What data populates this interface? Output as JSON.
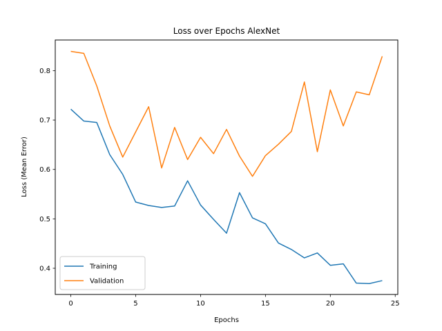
{
  "chart_data": {
    "type": "line",
    "title": "Loss over Epochs AlexNet",
    "xlabel": "Epochs",
    "ylabel": "Loss (Mean Error)",
    "xlim": [
      -1.2,
      25.2
    ],
    "ylim": [
      0.347,
      0.862
    ],
    "xticks": [
      0,
      5,
      10,
      15,
      20,
      25
    ],
    "yticks": [
      0.4,
      0.5,
      0.6,
      0.7,
      0.8
    ],
    "legend": "lower-left",
    "grid": false,
    "x": [
      0,
      1,
      2,
      3,
      4,
      5,
      6,
      7,
      8,
      9,
      10,
      11,
      12,
      13,
      14,
      15,
      16,
      17,
      18,
      19,
      20,
      21,
      22,
      23,
      24
    ],
    "series": [
      {
        "name": "Training",
        "color": "#1f77b4",
        "values": [
          0.722,
          0.698,
          0.695,
          0.63,
          0.59,
          0.534,
          0.527,
          0.523,
          0.526,
          0.577,
          0.528,
          0.499,
          0.471,
          0.553,
          0.502,
          0.49,
          0.451,
          0.438,
          0.421,
          0.431,
          0.406,
          0.409,
          0.37,
          0.369,
          0.375
        ]
      },
      {
        "name": "Validation",
        "color": "#ff7f0e",
        "values": [
          0.839,
          0.835,
          0.769,
          0.688,
          0.625,
          0.676,
          0.727,
          0.603,
          0.685,
          0.62,
          0.665,
          0.632,
          0.681,
          0.627,
          0.586,
          0.628,
          0.651,
          0.677,
          0.777,
          0.636,
          0.761,
          0.688,
          0.757,
          0.751,
          0.829
        ]
      }
    ]
  }
}
